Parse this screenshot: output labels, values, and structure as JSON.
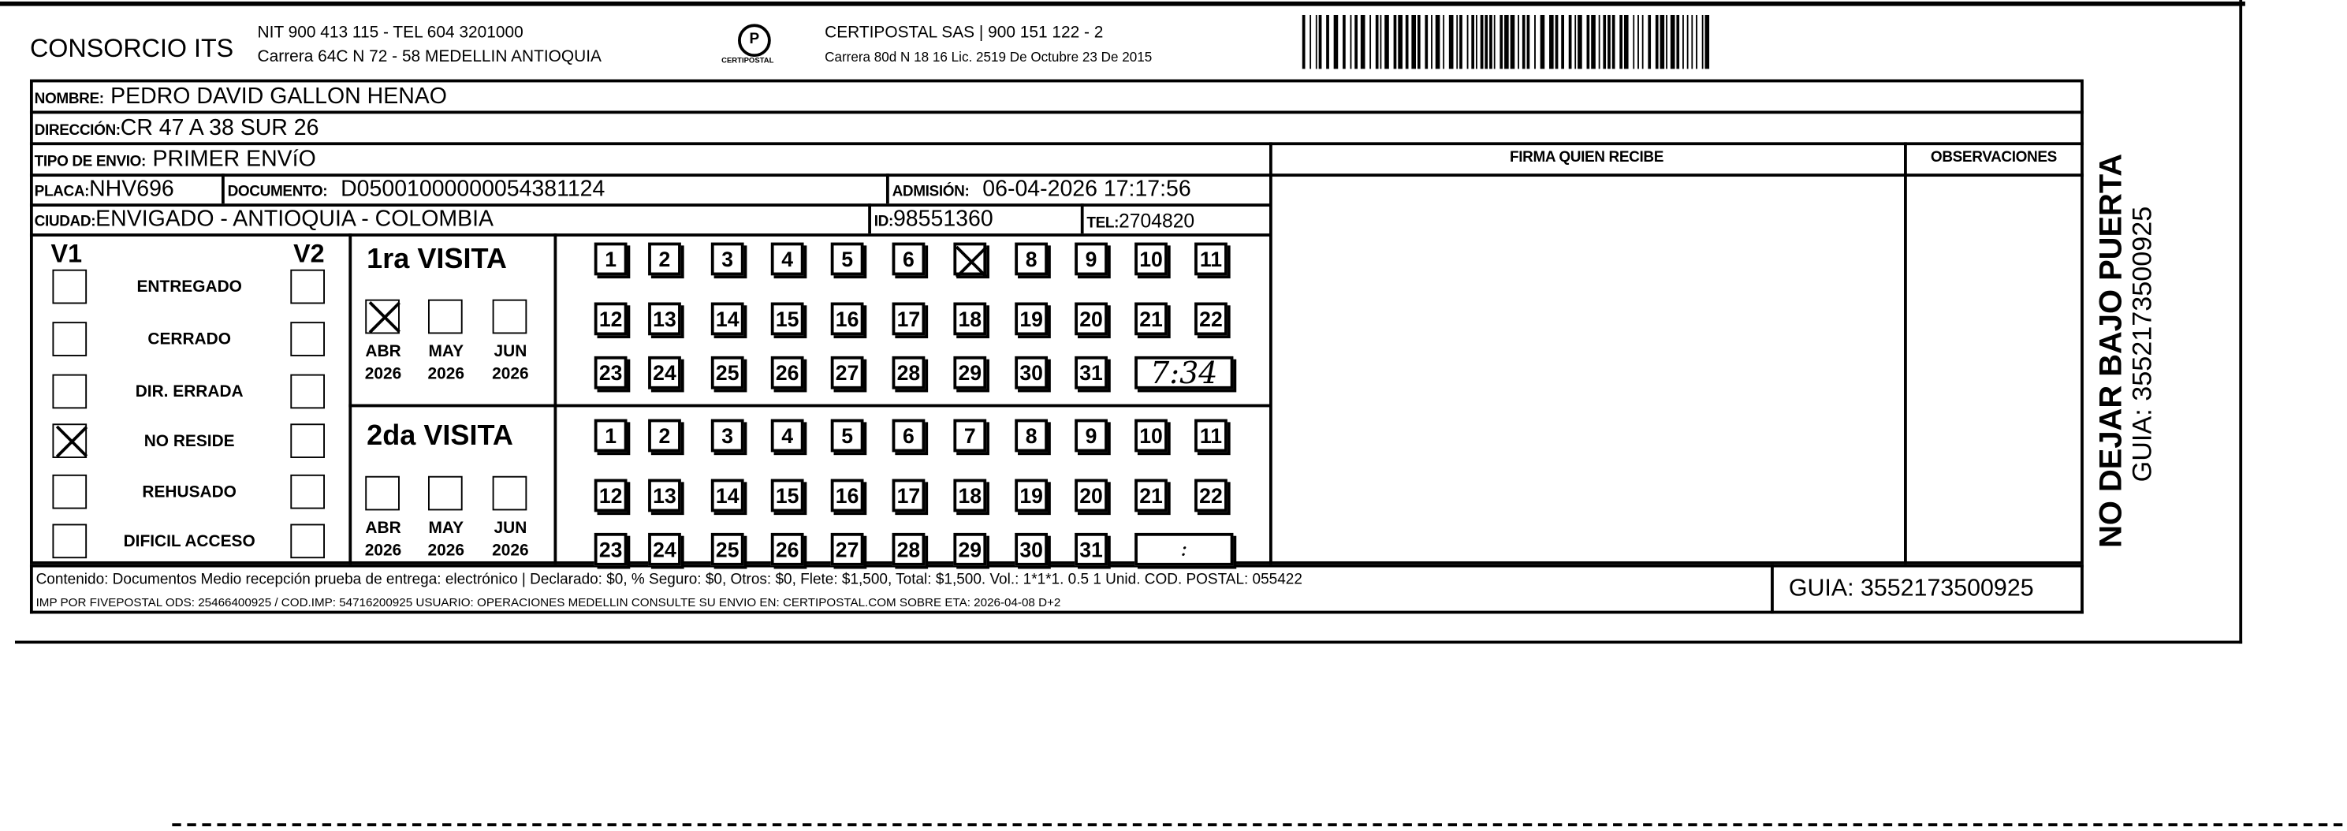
{
  "header": {
    "company": "CONSORCIO ITS",
    "nit_line": "NIT 900 413 115 - TEL 604 3201000",
    "address_line": "Carrera 64C N 72 - 58 MEDELLIN ANTIOQUIA",
    "logo_text": "CERTIPOSTAL",
    "carrier_line": "CERTIPOSTAL SAS | 900 151 122 - 2",
    "carrier_address": "Carrera 80d N 18 16 Lic. 2519 De Octubre 23 De 2015"
  },
  "fields": {
    "nombre_label": "NOMBRE:",
    "nombre": "PEDRO DAVID GALLON HENAO",
    "direccion_label": "DIRECCIÓN:",
    "direccion": "CR 47 A 38 SUR 26",
    "tipo_label": "TIPO DE ENVIO:",
    "tipo": "PRIMER ENVíO",
    "placa_label": "PLACA:",
    "placa": "NHV696",
    "documento_label": "DOCUMENTO:",
    "documento": "D05001000000054381124",
    "admision_label": "ADMISIÓN:",
    "admision": "06-04-2026 17:17:56",
    "ciudad_label": "CIUDAD:",
    "ciudad": "ENVIGADO - ANTIOQUIA - COLOMBIA",
    "id_label": "ID:",
    "id": "98551360",
    "tel_label": "TEL:",
    "tel": "2704820",
    "firma_header": "FIRMA QUIEN RECIBE",
    "observaciones_header": "OBSERVACIONES"
  },
  "status": {
    "v1_label": "V1",
    "v2_label": "V2",
    "items": [
      {
        "label": "ENTREGADO",
        "v1": false,
        "v2": false
      },
      {
        "label": "CERRADO",
        "v1": false,
        "v2": false
      },
      {
        "label": "DIR. ERRADA",
        "v1": false,
        "v2": false
      },
      {
        "label": "NO RESIDE",
        "v1": true,
        "v2": false
      },
      {
        "label": "REHUSADO",
        "v1": false,
        "v2": false
      },
      {
        "label": "DIFICIL ACCESO",
        "v1": false,
        "v2": false
      }
    ]
  },
  "visits": [
    {
      "title": "1ra VISITA",
      "months": [
        {
          "m": "ABR",
          "y": "2026",
          "checked": true
        },
        {
          "m": "MAY",
          "y": "2026",
          "checked": false
        },
        {
          "m": "JUN",
          "y": "2026",
          "checked": false
        }
      ],
      "checked_day": 7,
      "time": "7:34"
    },
    {
      "title": "2da VISITA",
      "months": [
        {
          "m": "ABR",
          "y": "2026",
          "checked": false
        },
        {
          "m": "MAY",
          "y": "2026",
          "checked": false
        },
        {
          "m": "JUN",
          "y": "2026",
          "checked": false
        }
      ],
      "checked_day": null,
      "time": ":"
    }
  ],
  "days": [
    "1",
    "2",
    "3",
    "4",
    "5",
    "6",
    "7",
    "8",
    "9",
    "10",
    "11",
    "12",
    "13",
    "14",
    "15",
    "16",
    "17",
    "18",
    "19",
    "20",
    "21",
    "22",
    "23",
    "24",
    "25",
    "26",
    "27",
    "28",
    "29",
    "30",
    "31"
  ],
  "footer": {
    "line1": "Contenido: Documentos Medio recepción prueba de entrega: electrónico | Declarado: $0, % Seguro: $0, Otros: $0, Flete: $1,500, Total: $1,500. Vol.: 1*1*1. 0.5  1 Unid. COD. POSTAL: 055422",
    "line2": "IMP POR FIVEPOSTAL ODS: 25466400925 / COD.IMP: 54716200925 USUARIO: OPERACIONES MEDELLIN CONSULTE SU ENVIO EN: CERTIPOSTAL.COM SOBRE ETA: 2026-04-08 D+2",
    "guia": "GUIA: 3552173500925"
  },
  "side": {
    "notice": "NO DEJAR BAJO PUERTA",
    "guia": "GUIA: 3552173500925"
  }
}
